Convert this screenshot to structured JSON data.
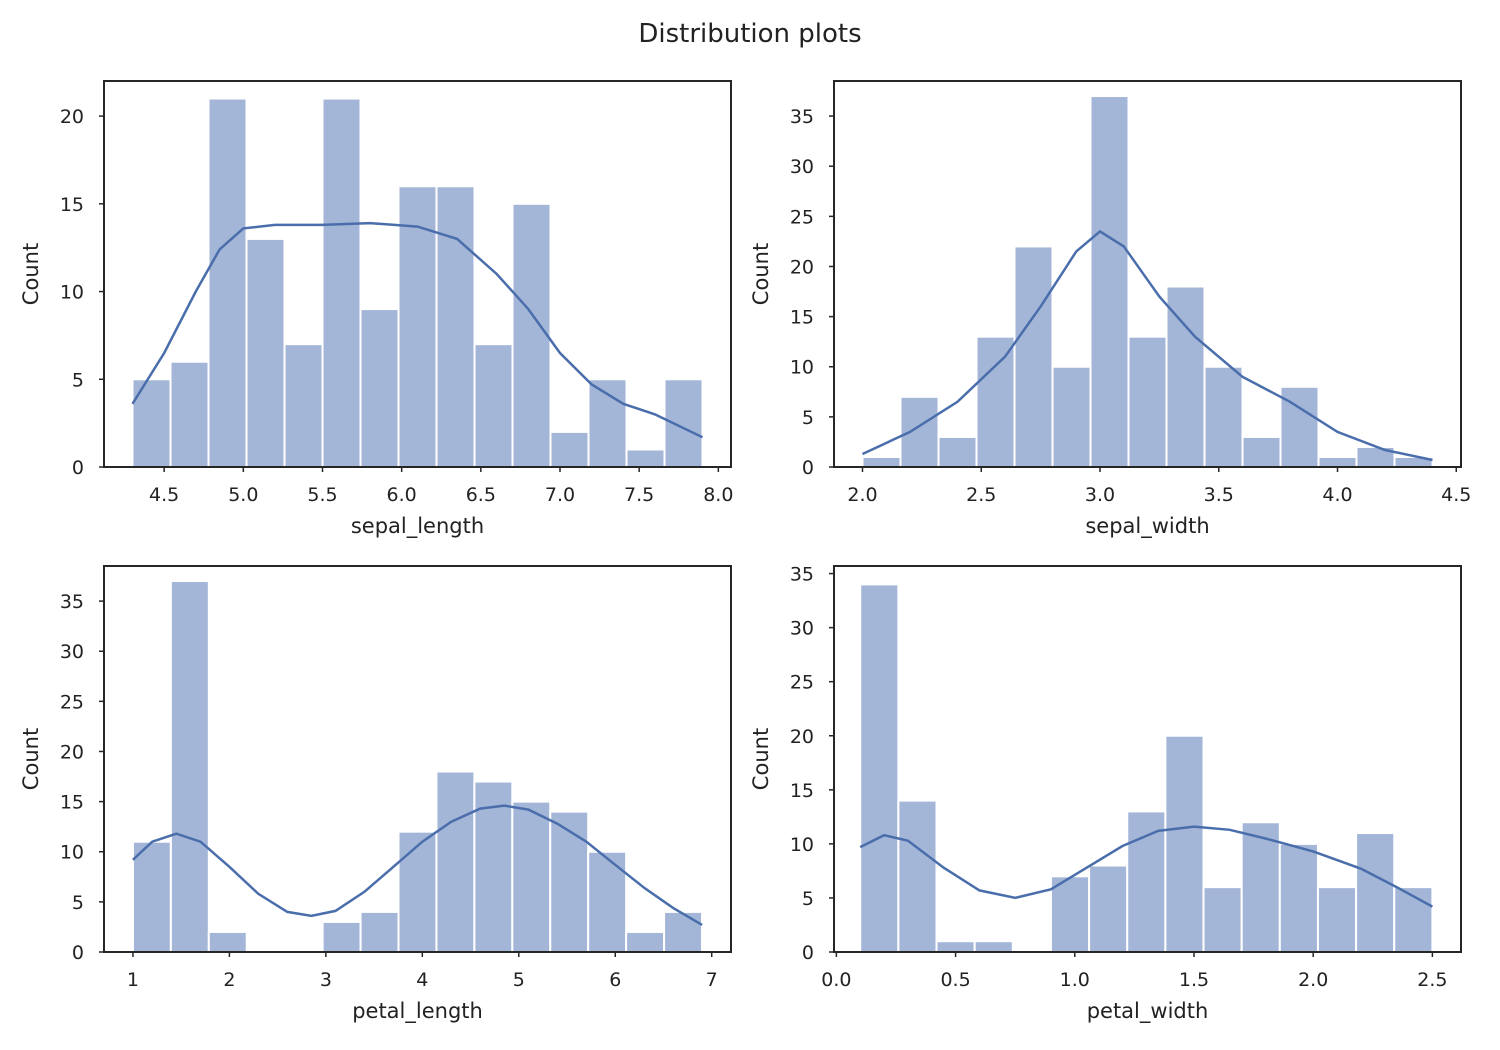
{
  "figure": {
    "title": "Distribution plots"
  },
  "chart_data": [
    {
      "type": "bar",
      "subtype": "histogram_with_kde",
      "xlabel": "sepal_length",
      "ylabel": "Count",
      "xlim": [
        4.12,
        8.08
      ],
      "ylim": [
        0,
        22
      ],
      "xticks": [
        4.5,
        5.0,
        5.5,
        6.0,
        6.5,
        7.0,
        7.5,
        8.0
      ],
      "xtick_labels": [
        "4.5",
        "5.0",
        "5.5",
        "6.0",
        "6.5",
        "7.0",
        "7.5",
        "8.0"
      ],
      "yticks": [
        0,
        5,
        10,
        15,
        20
      ],
      "bins_start": 4.3,
      "bin_width": 0.24,
      "values": [
        5,
        6,
        21,
        13,
        7,
        21,
        9,
        16,
        16,
        7,
        15,
        2,
        5,
        1,
        5
      ],
      "kde": {
        "x": [
          4.3,
          4.5,
          4.7,
          4.85,
          5.0,
          5.2,
          5.5,
          5.8,
          6.1,
          6.35,
          6.6,
          6.8,
          7.0,
          7.2,
          7.4,
          7.6,
          7.9
        ],
        "y": [
          3.6,
          6.5,
          10.0,
          12.4,
          13.6,
          13.8,
          13.8,
          13.9,
          13.7,
          13.0,
          11.0,
          9.0,
          6.5,
          4.7,
          3.6,
          3.0,
          1.7
        ]
      },
      "grid": false
    },
    {
      "type": "bar",
      "subtype": "histogram_with_kde",
      "xlabel": "sepal_width",
      "ylabel": "Count",
      "xlim": [
        1.88,
        4.52
      ],
      "ylim": [
        0,
        38.5
      ],
      "xticks": [
        2.0,
        2.5,
        3.0,
        3.5,
        4.0,
        4.5
      ],
      "xtick_labels": [
        "2.0",
        "2.5",
        "3.0",
        "3.5",
        "4.0",
        "4.5"
      ],
      "yticks": [
        0,
        5,
        10,
        15,
        20,
        25,
        30,
        35
      ],
      "bins_start": 2.0,
      "bin_width": 0.16,
      "values": [
        1,
        7,
        3,
        13,
        22,
        10,
        37,
        13,
        18,
        10,
        3,
        8,
        1,
        2,
        1
      ],
      "kde": {
        "x": [
          2.0,
          2.2,
          2.4,
          2.6,
          2.75,
          2.9,
          3.0,
          3.1,
          3.25,
          3.4,
          3.6,
          3.8,
          4.0,
          4.2,
          4.4
        ],
        "y": [
          1.3,
          3.5,
          6.5,
          11.0,
          16.0,
          21.5,
          23.5,
          22.0,
          17.0,
          13.0,
          9.0,
          6.5,
          3.5,
          1.7,
          0.7
        ]
      },
      "grid": false
    },
    {
      "type": "bar",
      "subtype": "histogram_with_kde",
      "xlabel": "petal_length",
      "ylabel": "Count",
      "xlim": [
        0.7,
        7.2
      ],
      "ylim": [
        0,
        38.5
      ],
      "xticks": [
        1,
        2,
        3,
        4,
        5,
        6,
        7
      ],
      "xtick_labels": [
        "1",
        "2",
        "3",
        "4",
        "5",
        "6",
        "7"
      ],
      "yticks": [
        0,
        5,
        10,
        15,
        20,
        25,
        30,
        35
      ],
      "bins_start": 1.0,
      "bin_width": 0.3933,
      "values": [
        11,
        37,
        2,
        0,
        0,
        3,
        4,
        12,
        18,
        17,
        15,
        14,
        10,
        2,
        4
      ],
      "kde": {
        "x": [
          1.0,
          1.2,
          1.45,
          1.7,
          2.0,
          2.3,
          2.6,
          2.85,
          3.1,
          3.4,
          3.7,
          4.0,
          4.3,
          4.6,
          4.85,
          5.1,
          5.4,
          5.7,
          6.0,
          6.3,
          6.6,
          6.9
        ],
        "y": [
          9.2,
          11.0,
          11.8,
          11.0,
          8.5,
          5.8,
          4.0,
          3.6,
          4.1,
          6.0,
          8.5,
          11.0,
          13.0,
          14.3,
          14.6,
          14.2,
          12.8,
          11.0,
          8.7,
          6.4,
          4.4,
          2.7
        ]
      },
      "grid": false
    },
    {
      "type": "bar",
      "subtype": "histogram_with_kde",
      "xlabel": "petal_width",
      "ylabel": "Count",
      "xlim": [
        -0.01,
        2.62
      ],
      "ylim": [
        0,
        35.7
      ],
      "xticks": [
        0.0,
        0.5,
        1.0,
        1.5,
        2.0,
        2.5
      ],
      "xtick_labels": [
        "0.0",
        "0.5",
        "1.0",
        "1.5",
        "2.0",
        "2.5"
      ],
      "yticks": [
        0,
        5,
        10,
        15,
        20,
        25,
        30,
        35
      ],
      "bins_start": 0.1,
      "bin_width": 0.16,
      "values": [
        34,
        14,
        1,
        1,
        0,
        7,
        8,
        13,
        20,
        6,
        12,
        10,
        6,
        11,
        6
      ],
      "kde": {
        "x": [
          0.1,
          0.2,
          0.3,
          0.45,
          0.6,
          0.75,
          0.9,
          1.05,
          1.2,
          1.35,
          1.5,
          1.65,
          1.8,
          2.0,
          2.2,
          2.35,
          2.5
        ],
        "y": [
          9.7,
          10.8,
          10.3,
          7.8,
          5.7,
          5.0,
          5.8,
          7.8,
          9.8,
          11.2,
          11.6,
          11.3,
          10.5,
          9.3,
          7.7,
          6.0,
          4.2
        ]
      },
      "grid": false
    }
  ]
}
